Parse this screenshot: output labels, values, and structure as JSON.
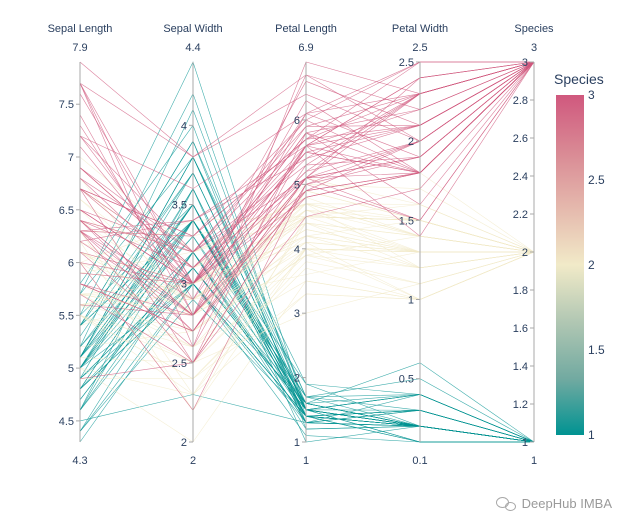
{
  "chart_data": {
    "type": "parallel_coordinates",
    "title": "",
    "dimensions": [
      {
        "label": "Sepal Length",
        "range": [
          4.3,
          7.9
        ],
        "range_min_label": "4.3",
        "range_max_label": "7.9",
        "ticks": [
          4.5,
          5,
          5.5,
          6,
          6.5,
          7,
          7.5
        ]
      },
      {
        "label": "Sepal Width",
        "range": [
          2,
          4.4
        ],
        "range_min_label": "2",
        "range_max_label": "4.4",
        "ticks": [
          2,
          2.5,
          3,
          3.5,
          4
        ]
      },
      {
        "label": "Petal Length",
        "range": [
          1,
          6.9
        ],
        "range_min_label": "1",
        "range_max_label": "6.9",
        "ticks": [
          1,
          2,
          3,
          4,
          5,
          6
        ]
      },
      {
        "label": "Petal Width",
        "range": [
          0.1,
          2.5
        ],
        "range_min_label": "0.1",
        "range_max_label": "2.5",
        "ticks": [
          0.5,
          1,
          1.5,
          2,
          2.5
        ]
      },
      {
        "label": "Species",
        "range": [
          1,
          3
        ],
        "range_min_label": "1",
        "range_max_label": "3",
        "ticks": [
          1,
          1.2,
          1.4,
          1.6,
          1.8,
          2,
          2.2,
          2.4,
          2.6,
          2.8,
          3
        ]
      }
    ],
    "rows": [
      [
        5.1,
        3.5,
        1.4,
        0.2,
        1
      ],
      [
        4.9,
        3.0,
        1.4,
        0.2,
        1
      ],
      [
        4.7,
        3.2,
        1.3,
        0.2,
        1
      ],
      [
        4.6,
        3.1,
        1.5,
        0.2,
        1
      ],
      [
        5.0,
        3.6,
        1.4,
        0.2,
        1
      ],
      [
        5.4,
        3.9,
        1.7,
        0.4,
        1
      ],
      [
        4.6,
        3.4,
        1.4,
        0.3,
        1
      ],
      [
        5.0,
        3.4,
        1.5,
        0.2,
        1
      ],
      [
        4.4,
        2.9,
        1.4,
        0.2,
        1
      ],
      [
        4.9,
        3.1,
        1.5,
        0.1,
        1
      ],
      [
        5.4,
        3.7,
        1.5,
        0.2,
        1
      ],
      [
        4.8,
        3.4,
        1.6,
        0.2,
        1
      ],
      [
        4.8,
        3.0,
        1.4,
        0.1,
        1
      ],
      [
        4.3,
        3.0,
        1.1,
        0.1,
        1
      ],
      [
        5.8,
        4.0,
        1.2,
        0.2,
        1
      ],
      [
        5.7,
        4.4,
        1.5,
        0.4,
        1
      ],
      [
        5.4,
        3.9,
        1.3,
        0.4,
        1
      ],
      [
        5.1,
        3.5,
        1.4,
        0.3,
        1
      ],
      [
        5.7,
        3.8,
        1.7,
        0.3,
        1
      ],
      [
        5.1,
        3.8,
        1.5,
        0.3,
        1
      ],
      [
        5.4,
        3.4,
        1.7,
        0.2,
        1
      ],
      [
        5.1,
        3.7,
        1.5,
        0.4,
        1
      ],
      [
        4.6,
        3.6,
        1.0,
        0.2,
        1
      ],
      [
        5.1,
        3.3,
        1.7,
        0.5,
        1
      ],
      [
        4.8,
        3.4,
        1.9,
        0.2,
        1
      ],
      [
        5.0,
        3.0,
        1.6,
        0.2,
        1
      ],
      [
        5.0,
        3.4,
        1.6,
        0.4,
        1
      ],
      [
        5.2,
        3.5,
        1.5,
        0.2,
        1
      ],
      [
        5.2,
        3.4,
        1.4,
        0.2,
        1
      ],
      [
        4.7,
        3.2,
        1.6,
        0.2,
        1
      ],
      [
        4.8,
        3.1,
        1.6,
        0.2,
        1
      ],
      [
        5.4,
        3.4,
        1.5,
        0.4,
        1
      ],
      [
        5.2,
        4.1,
        1.5,
        0.1,
        1
      ],
      [
        5.5,
        4.2,
        1.4,
        0.2,
        1
      ],
      [
        4.9,
        3.1,
        1.5,
        0.2,
        1
      ],
      [
        5.0,
        3.2,
        1.2,
        0.2,
        1
      ],
      [
        5.5,
        3.5,
        1.3,
        0.2,
        1
      ],
      [
        4.9,
        3.6,
        1.4,
        0.1,
        1
      ],
      [
        4.4,
        3.0,
        1.3,
        0.2,
        1
      ],
      [
        5.1,
        3.4,
        1.5,
        0.2,
        1
      ],
      [
        5.0,
        3.5,
        1.3,
        0.3,
        1
      ],
      [
        4.5,
        2.3,
        1.3,
        0.3,
        1
      ],
      [
        4.4,
        3.2,
        1.3,
        0.2,
        1
      ],
      [
        5.0,
        3.5,
        1.6,
        0.6,
        1
      ],
      [
        5.1,
        3.8,
        1.9,
        0.4,
        1
      ],
      [
        4.8,
        3.0,
        1.4,
        0.3,
        1
      ],
      [
        5.1,
        3.8,
        1.6,
        0.2,
        1
      ],
      [
        4.6,
        3.2,
        1.4,
        0.2,
        1
      ],
      [
        5.3,
        3.7,
        1.5,
        0.2,
        1
      ],
      [
        5.0,
        3.3,
        1.4,
        0.2,
        1
      ],
      [
        7.0,
        3.2,
        4.7,
        1.4,
        2
      ],
      [
        6.4,
        3.2,
        4.5,
        1.5,
        2
      ],
      [
        6.9,
        3.1,
        4.9,
        1.5,
        2
      ],
      [
        5.5,
        2.3,
        4.0,
        1.3,
        2
      ],
      [
        6.5,
        2.8,
        4.6,
        1.5,
        2
      ],
      [
        5.7,
        2.8,
        4.5,
        1.3,
        2
      ],
      [
        6.3,
        3.3,
        4.7,
        1.6,
        2
      ],
      [
        4.9,
        2.4,
        3.3,
        1.0,
        2
      ],
      [
        6.6,
        2.9,
        4.6,
        1.3,
        2
      ],
      [
        5.2,
        2.7,
        3.9,
        1.4,
        2
      ],
      [
        5.0,
        2.0,
        3.5,
        1.0,
        2
      ],
      [
        5.9,
        3.0,
        4.2,
        1.5,
        2
      ],
      [
        6.0,
        2.2,
        4.0,
        1.0,
        2
      ],
      [
        6.1,
        2.9,
        4.7,
        1.4,
        2
      ],
      [
        5.6,
        2.9,
        3.6,
        1.3,
        2
      ],
      [
        6.7,
        3.1,
        4.4,
        1.4,
        2
      ],
      [
        5.6,
        3.0,
        4.5,
        1.5,
        2
      ],
      [
        5.8,
        2.7,
        4.1,
        1.0,
        2
      ],
      [
        6.2,
        2.2,
        4.5,
        1.5,
        2
      ],
      [
        5.6,
        2.5,
        3.9,
        1.1,
        2
      ],
      [
        5.9,
        3.2,
        4.8,
        1.8,
        2
      ],
      [
        6.1,
        2.8,
        4.0,
        1.3,
        2
      ],
      [
        6.3,
        2.5,
        4.9,
        1.5,
        2
      ],
      [
        6.1,
        2.8,
        4.7,
        1.2,
        2
      ],
      [
        6.4,
        2.9,
        4.3,
        1.3,
        2
      ],
      [
        6.6,
        3.0,
        4.4,
        1.4,
        2
      ],
      [
        6.8,
        2.8,
        4.8,
        1.4,
        2
      ],
      [
        6.7,
        3.0,
        5.0,
        1.7,
        2
      ],
      [
        6.0,
        2.9,
        4.5,
        1.5,
        2
      ],
      [
        5.7,
        2.6,
        3.5,
        1.0,
        2
      ],
      [
        5.5,
        2.4,
        3.8,
        1.1,
        2
      ],
      [
        5.5,
        2.4,
        3.7,
        1.0,
        2
      ],
      [
        5.8,
        2.7,
        3.9,
        1.2,
        2
      ],
      [
        6.0,
        2.7,
        5.1,
        1.6,
        2
      ],
      [
        5.4,
        3.0,
        4.5,
        1.5,
        2
      ],
      [
        6.0,
        3.4,
        4.5,
        1.6,
        2
      ],
      [
        6.7,
        3.1,
        4.7,
        1.5,
        2
      ],
      [
        6.3,
        2.3,
        4.4,
        1.3,
        2
      ],
      [
        5.6,
        3.0,
        4.1,
        1.3,
        2
      ],
      [
        5.5,
        2.5,
        4.0,
        1.3,
        2
      ],
      [
        5.5,
        2.6,
        4.4,
        1.2,
        2
      ],
      [
        6.1,
        3.0,
        4.6,
        1.4,
        2
      ],
      [
        5.8,
        2.6,
        4.0,
        1.2,
        2
      ],
      [
        5.0,
        2.3,
        3.3,
        1.0,
        2
      ],
      [
        5.6,
        2.7,
        4.2,
        1.3,
        2
      ],
      [
        5.7,
        3.0,
        4.2,
        1.2,
        2
      ],
      [
        5.7,
        2.9,
        4.2,
        1.3,
        2
      ],
      [
        6.2,
        2.9,
        4.3,
        1.3,
        2
      ],
      [
        5.1,
        2.5,
        3.0,
        1.1,
        2
      ],
      [
        5.7,
        2.8,
        4.1,
        1.3,
        2
      ],
      [
        6.3,
        3.3,
        6.0,
        2.5,
        3
      ],
      [
        5.8,
        2.7,
        5.1,
        1.9,
        3
      ],
      [
        7.1,
        3.0,
        5.9,
        2.1,
        3
      ],
      [
        6.3,
        2.9,
        5.6,
        1.8,
        3
      ],
      [
        6.5,
        3.0,
        5.8,
        2.2,
        3
      ],
      [
        7.6,
        3.0,
        6.6,
        2.1,
        3
      ],
      [
        4.9,
        2.5,
        4.5,
        1.7,
        3
      ],
      [
        7.3,
        2.9,
        6.3,
        1.8,
        3
      ],
      [
        6.7,
        2.5,
        5.8,
        1.8,
        3
      ],
      [
        7.2,
        3.6,
        6.1,
        2.5,
        3
      ],
      [
        6.5,
        3.2,
        5.1,
        2.0,
        3
      ],
      [
        6.4,
        2.7,
        5.3,
        1.9,
        3
      ],
      [
        6.8,
        3.0,
        5.5,
        2.1,
        3
      ],
      [
        5.7,
        2.5,
        5.0,
        2.0,
        3
      ],
      [
        5.8,
        2.8,
        5.1,
        2.4,
        3
      ],
      [
        6.4,
        3.2,
        5.3,
        2.3,
        3
      ],
      [
        6.5,
        3.0,
        5.5,
        1.8,
        3
      ],
      [
        7.7,
        3.8,
        6.7,
        2.2,
        3
      ],
      [
        7.7,
        2.6,
        6.9,
        2.3,
        3
      ],
      [
        6.0,
        2.2,
        5.0,
        1.5,
        3
      ],
      [
        6.9,
        3.2,
        5.7,
        2.3,
        3
      ],
      [
        5.6,
        2.8,
        4.9,
        2.0,
        3
      ],
      [
        7.7,
        2.8,
        6.7,
        2.0,
        3
      ],
      [
        6.3,
        2.7,
        4.9,
        1.8,
        3
      ],
      [
        6.7,
        3.3,
        5.7,
        2.1,
        3
      ],
      [
        7.2,
        3.2,
        6.0,
        1.8,
        3
      ],
      [
        6.2,
        2.8,
        4.8,
        1.8,
        3
      ],
      [
        6.1,
        3.0,
        4.9,
        1.8,
        3
      ],
      [
        6.4,
        2.8,
        5.6,
        2.1,
        3
      ],
      [
        7.2,
        3.0,
        5.8,
        1.6,
        3
      ],
      [
        7.4,
        2.8,
        6.1,
        1.9,
        3
      ],
      [
        7.9,
        3.8,
        6.4,
        2.0,
        3
      ],
      [
        6.4,
        2.8,
        5.6,
        2.2,
        3
      ],
      [
        6.3,
        2.8,
        5.1,
        1.5,
        3
      ],
      [
        6.1,
        2.6,
        5.6,
        1.4,
        3
      ],
      [
        7.7,
        3.0,
        6.1,
        2.3,
        3
      ],
      [
        6.3,
        3.4,
        5.6,
        2.4,
        3
      ],
      [
        6.4,
        3.1,
        5.5,
        1.8,
        3
      ],
      [
        6.0,
        3.0,
        4.8,
        1.8,
        3
      ],
      [
        6.9,
        3.1,
        5.4,
        2.1,
        3
      ],
      [
        6.7,
        3.1,
        5.6,
        2.4,
        3
      ],
      [
        6.9,
        3.1,
        5.1,
        2.3,
        3
      ],
      [
        5.8,
        2.7,
        5.1,
        1.9,
        3
      ],
      [
        6.8,
        3.2,
        5.9,
        2.3,
        3
      ],
      [
        6.7,
        3.3,
        5.7,
        2.5,
        3
      ],
      [
        6.7,
        3.0,
        5.2,
        2.3,
        3
      ],
      [
        6.3,
        2.5,
        5.0,
        1.9,
        3
      ],
      [
        6.5,
        3.0,
        5.2,
        2.0,
        3
      ],
      [
        6.2,
        3.4,
        5.4,
        2.3,
        3
      ],
      [
        5.9,
        3.0,
        5.1,
        1.8,
        3
      ]
    ],
    "colorbar": {
      "title": "Species",
      "range": [
        1,
        3
      ],
      "ticks": [
        1,
        1.5,
        2,
        2.5,
        3
      ],
      "tick_labels": [
        "1",
        "1.5",
        "2",
        "2.5",
        "3"
      ],
      "colorscale": [
        "#009392",
        "#72aaa1",
        "#b1c7b3",
        "#f1eac8",
        "#e5b9ad",
        "#d98994",
        "#d0587e"
      ]
    }
  },
  "watermark": {
    "text": "DeepHub IMBA",
    "icon": "wechat-icon"
  }
}
